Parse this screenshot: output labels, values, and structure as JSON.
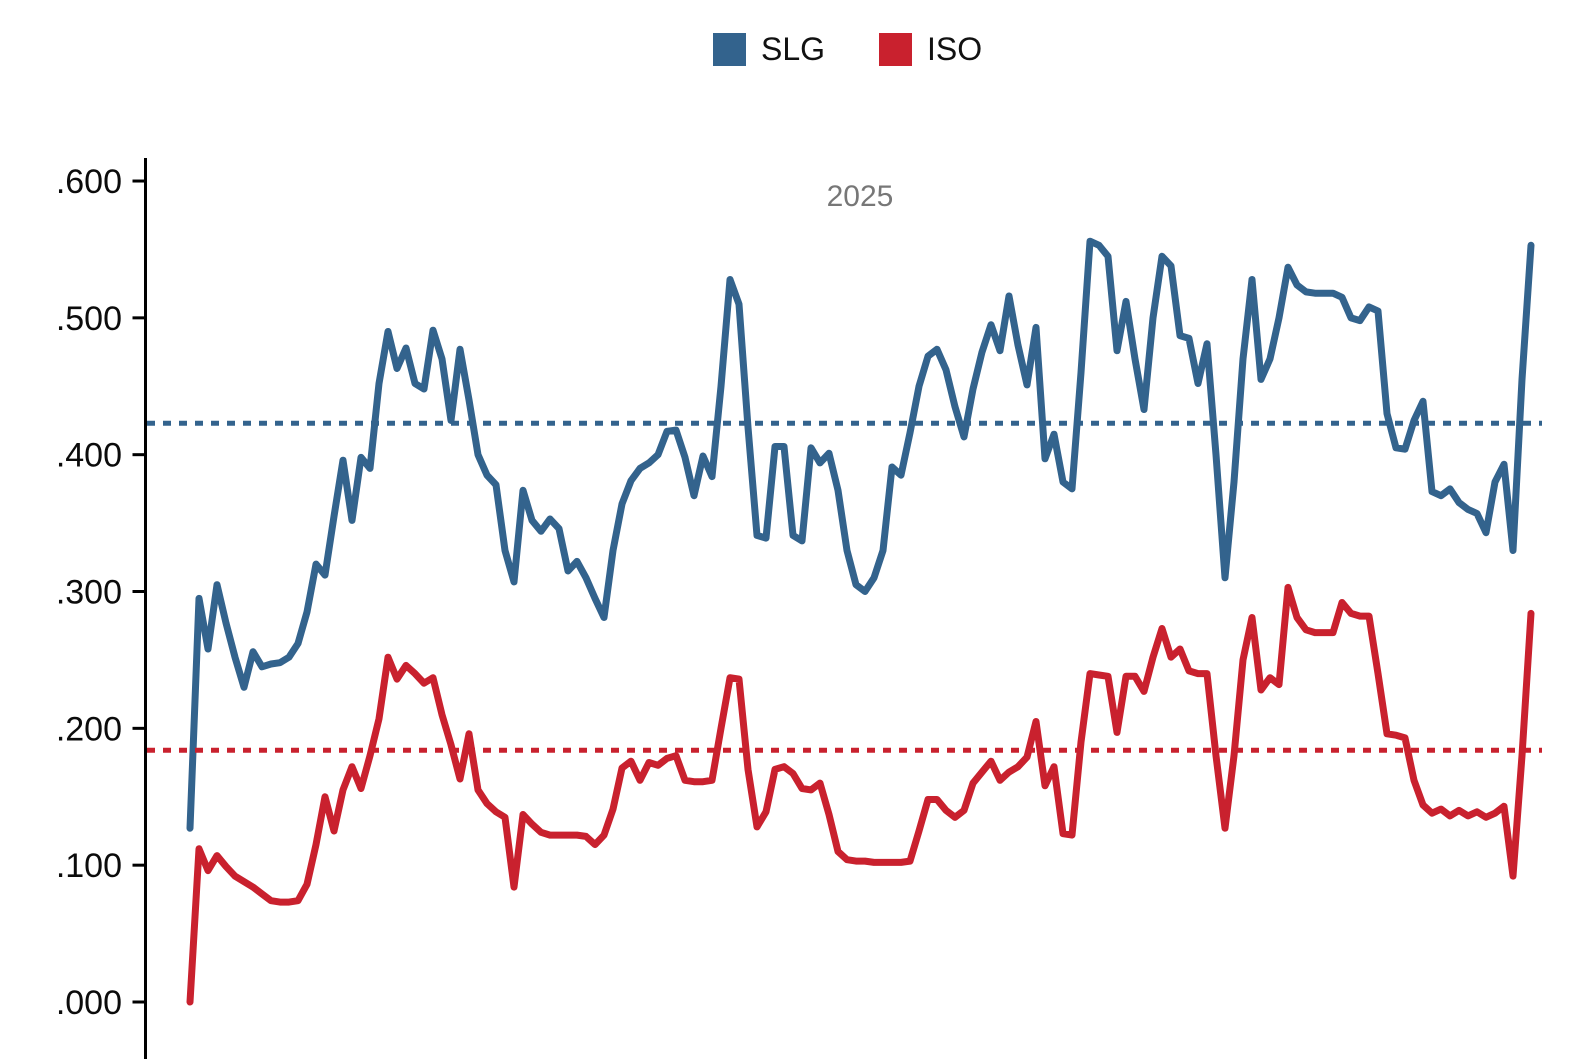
{
  "legend": {
    "items": [
      {
        "label": "SLG",
        "color": "#33638D"
      },
      {
        "label": "ISO",
        "color": "#C9212E"
      }
    ]
  },
  "chart_data": {
    "type": "line",
    "title": "2025",
    "title_color": "#777777",
    "xlabel": "",
    "ylabel": "",
    "x_description": "game-by-game rolling values over the 2025 season (x axis unlabeled, 150 points)",
    "grid": false,
    "legend_position": "top-center",
    "y_axis": {
      "ticks": [
        {
          "value": 0.6,
          "label": ".600"
        },
        {
          "value": 0.5,
          "label": ".500"
        },
        {
          "value": 0.4,
          "label": ".400"
        },
        {
          "value": 0.3,
          "label": ".300"
        },
        {
          "value": 0.2,
          "label": ".200"
        },
        {
          "value": 0.1,
          "label": ".100"
        },
        {
          "value": 0.0,
          "label": ".000"
        }
      ],
      "shown_range": [
        -0.06,
        0.62
      ]
    },
    "series": [
      {
        "name": "SLG",
        "color": "#33638D",
        "average": 0.423,
        "average_line_style": "dotted",
        "values": [
          0.127,
          0.295,
          0.258,
          0.305,
          0.277,
          0.252,
          0.23,
          0.256,
          0.245,
          0.247,
          0.248,
          0.252,
          0.262,
          0.285,
          0.32,
          0.312,
          0.355,
          0.396,
          0.352,
          0.398,
          0.39,
          0.452,
          0.49,
          0.463,
          0.478,
          0.452,
          0.448,
          0.491,
          0.47,
          0.425,
          0.477,
          0.44,
          0.4,
          0.385,
          0.378,
          0.33,
          0.307,
          0.374,
          0.352,
          0.344,
          0.353,
          0.346,
          0.315,
          0.322,
          0.31,
          0.295,
          0.281,
          0.33,
          0.364,
          0.381,
          0.39,
          0.394,
          0.4,
          0.417,
          0.418,
          0.398,
          0.37,
          0.399,
          0.384,
          0.45,
          0.528,
          0.51,
          0.42,
          0.341,
          0.339,
          0.406,
          0.406,
          0.341,
          0.337,
          0.405,
          0.394,
          0.401,
          0.374,
          0.33,
          0.305,
          0.3,
          0.31,
          0.33,
          0.391,
          0.385,
          0.416,
          0.45,
          0.472,
          0.477,
          0.462,
          0.435,
          0.413,
          0.448,
          0.475,
          0.495,
          0.476,
          0.516,
          0.48,
          0.451,
          0.493,
          0.397,
          0.415,
          0.38,
          0.375,
          0.46,
          0.556,
          0.553,
          0.545,
          0.476,
          0.512,
          0.47,
          0.433,
          0.5,
          0.545,
          0.538,
          0.487,
          0.485,
          0.452,
          0.481,
          0.4,
          0.31,
          0.38,
          0.47,
          0.528,
          0.455,
          0.47,
          0.5,
          0.537,
          0.524,
          0.519,
          0.518,
          0.518,
          0.518,
          0.515,
          0.5,
          0.498,
          0.508,
          0.505,
          0.43,
          0.405,
          0.404,
          0.425,
          0.439,
          0.373,
          0.37,
          0.375,
          0.365,
          0.36,
          0.357,
          0.343,
          0.38,
          0.393,
          0.33,
          0.455,
          0.553
        ]
      },
      {
        "name": "ISO",
        "color": "#C9212E",
        "average": 0.184,
        "average_line_style": "dotted",
        "values": [
          0.0,
          0.112,
          0.096,
          0.107,
          0.099,
          0.092,
          0.088,
          0.084,
          0.079,
          0.074,
          0.073,
          0.073,
          0.074,
          0.086,
          0.115,
          0.15,
          0.125,
          0.155,
          0.172,
          0.156,
          0.18,
          0.207,
          0.252,
          0.236,
          0.246,
          0.24,
          0.233,
          0.237,
          0.21,
          0.188,
          0.163,
          0.196,
          0.155,
          0.145,
          0.139,
          0.135,
          0.084,
          0.137,
          0.13,
          0.124,
          0.122,
          0.122,
          0.122,
          0.122,
          0.121,
          0.115,
          0.122,
          0.141,
          0.171,
          0.176,
          0.162,
          0.175,
          0.173,
          0.178,
          0.18,
          0.162,
          0.161,
          0.161,
          0.162,
          0.2,
          0.237,
          0.236,
          0.17,
          0.128,
          0.139,
          0.17,
          0.172,
          0.167,
          0.156,
          0.155,
          0.16,
          0.137,
          0.11,
          0.104,
          0.103,
          0.103,
          0.102,
          0.102,
          0.102,
          0.102,
          0.103,
          0.125,
          0.148,
          0.148,
          0.14,
          0.135,
          0.14,
          0.16,
          0.168,
          0.176,
          0.162,
          0.168,
          0.172,
          0.179,
          0.205,
          0.158,
          0.172,
          0.123,
          0.122,
          0.19,
          0.24,
          0.239,
          0.238,
          0.197,
          0.238,
          0.238,
          0.227,
          0.252,
          0.273,
          0.252,
          0.258,
          0.242,
          0.24,
          0.24,
          0.18,
          0.127,
          0.18,
          0.25,
          0.281,
          0.228,
          0.237,
          0.232,
          0.303,
          0.281,
          0.272,
          0.27,
          0.27,
          0.27,
          0.292,
          0.284,
          0.282,
          0.282,
          0.24,
          0.196,
          0.195,
          0.193,
          0.162,
          0.144,
          0.138,
          0.141,
          0.136,
          0.14,
          0.136,
          0.139,
          0.135,
          0.138,
          0.143,
          0.092,
          0.18,
          0.284
        ]
      }
    ]
  }
}
